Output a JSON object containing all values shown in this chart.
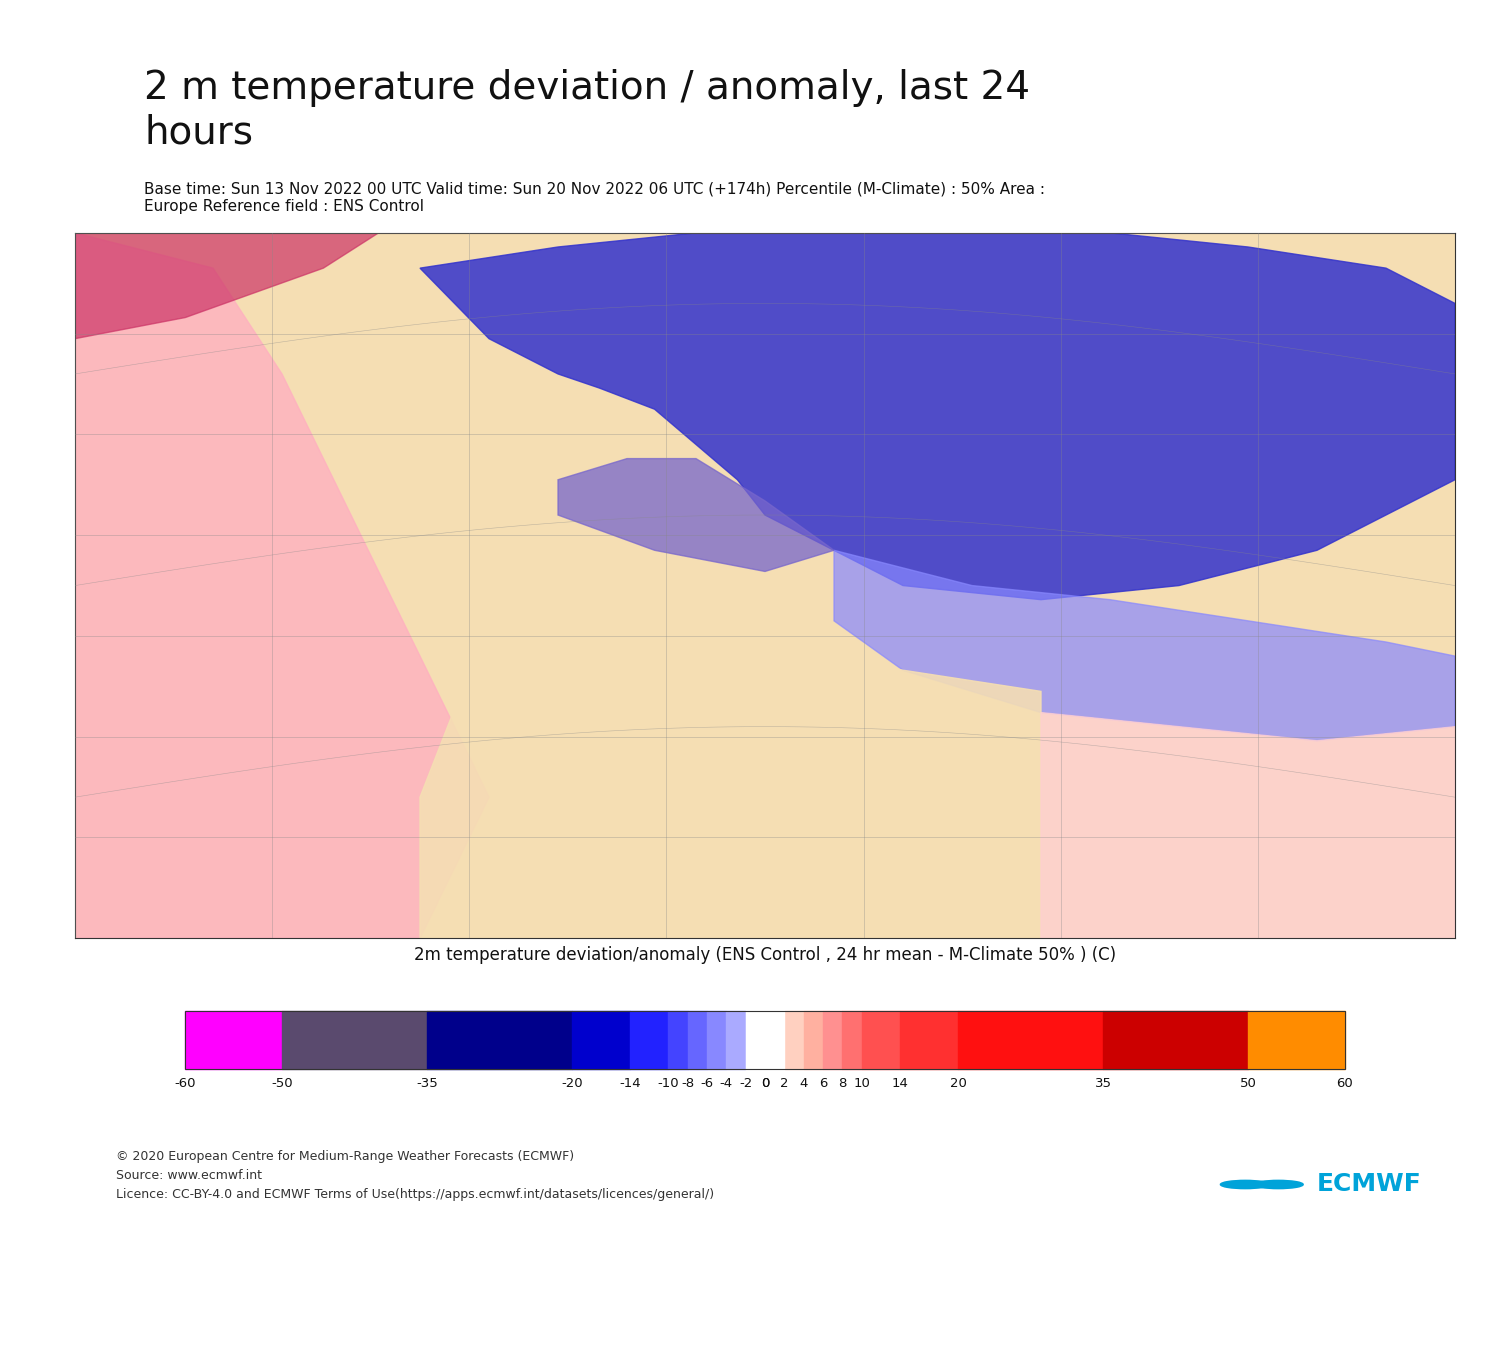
{
  "title": "2 m temperature deviation / anomaly, last 24\nhours",
  "subtitle": "Base time: Sun 13 Nov 2022 00 UTC Valid time: Sun 20 Nov 2022 06 UTC (+174h) Percentile (M-Climate) : 50% Area :\nEurope Reference field : ENS Control",
  "colorbar_title": "2m temperature deviation/anomaly (ENS Control , 24 hr mean - M-Climate 50% ) (C)",
  "colorbar_ticks": [
    -60,
    -50,
    -35,
    -20,
    -14,
    -10,
    -8,
    -6,
    -4,
    -2,
    0,
    2,
    4,
    6,
    8,
    10,
    14,
    20,
    35,
    50,
    60
  ],
  "colorbar_colors": [
    "#FF00FF",
    "#5A4A6E",
    "#00008B",
    "#0000CD",
    "#2222FF",
    "#4444FF",
    "#6666FF",
    "#8888FF",
    "#AAAAFF",
    "#CCCCFF",
    "#FFE4B5",
    "#FFD0C0",
    "#FFB0A0",
    "#FF9090",
    "#FF7070",
    "#FF5050",
    "#FF3030",
    "#FF1010",
    "#CC0000",
    "#FF8C00"
  ],
  "copyright_text": "© 2020 European Centre for Medium-Range Weather Forecasts (ECMWF)\nSource: www.ecmwf.int\nLicence: CC-BY-4.0 and ECMWF Terms of Use(https://apps.ecmwf.int/datasets/licences/general/)",
  "bg_color": "#FFFFFF",
  "map_border_color": "#000000",
  "title_fontsize": 28,
  "subtitle_fontsize": 11,
  "colorbar_label_fontsize": 11,
  "colorbar_title_fontsize": 12,
  "copyright_fontsize": 9,
  "ecmwf_logo_color": "#00A3D9",
  "figure_width": 15.0,
  "figure_height": 13.5
}
